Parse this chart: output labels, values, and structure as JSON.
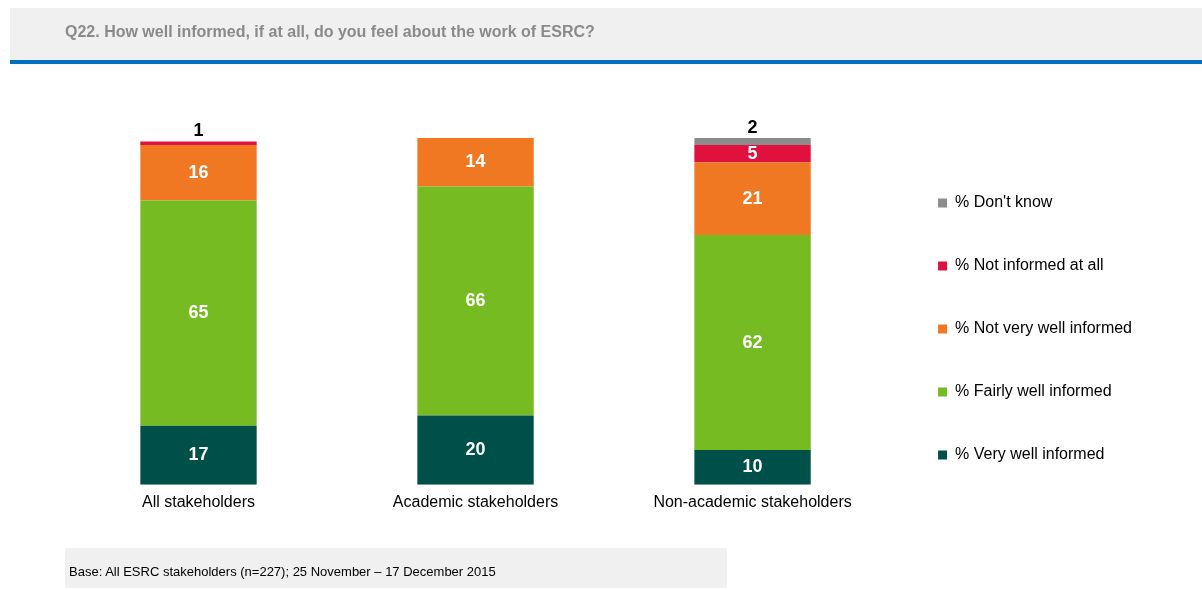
{
  "chart_data": {
    "type": "bar",
    "title": "Q22. How well informed, if at all, do you feel about the work of ESRC?",
    "stacked": true,
    "data_labels": true,
    "legend": "right",
    "grid": false,
    "categories": [
      "All stakeholders",
      "Academic stakeholders",
      "Non-academic stakeholders"
    ],
    "series": [
      {
        "name": "% Very well informed",
        "color": "#00504a",
        "values": [
          17,
          20,
          10
        ]
      },
      {
        "name": "% Fairly well informed",
        "color": "#77bb22",
        "values": [
          65,
          66,
          62
        ]
      },
      {
        "name": "% Not very well informed",
        "color": "#f07822",
        "values": [
          16,
          14,
          21
        ]
      },
      {
        "name": "% Not informed at all",
        "color": "#e0103f",
        "values": [
          1,
          null,
          5
        ]
      },
      {
        "name": "% Don't know",
        "color": "#8c8c8c",
        "values": [
          null,
          null,
          2
        ]
      }
    ],
    "annotations": [
      "Base: All ESRC stakeholders (n=227); 25 November – 17 December 2015"
    ]
  }
}
